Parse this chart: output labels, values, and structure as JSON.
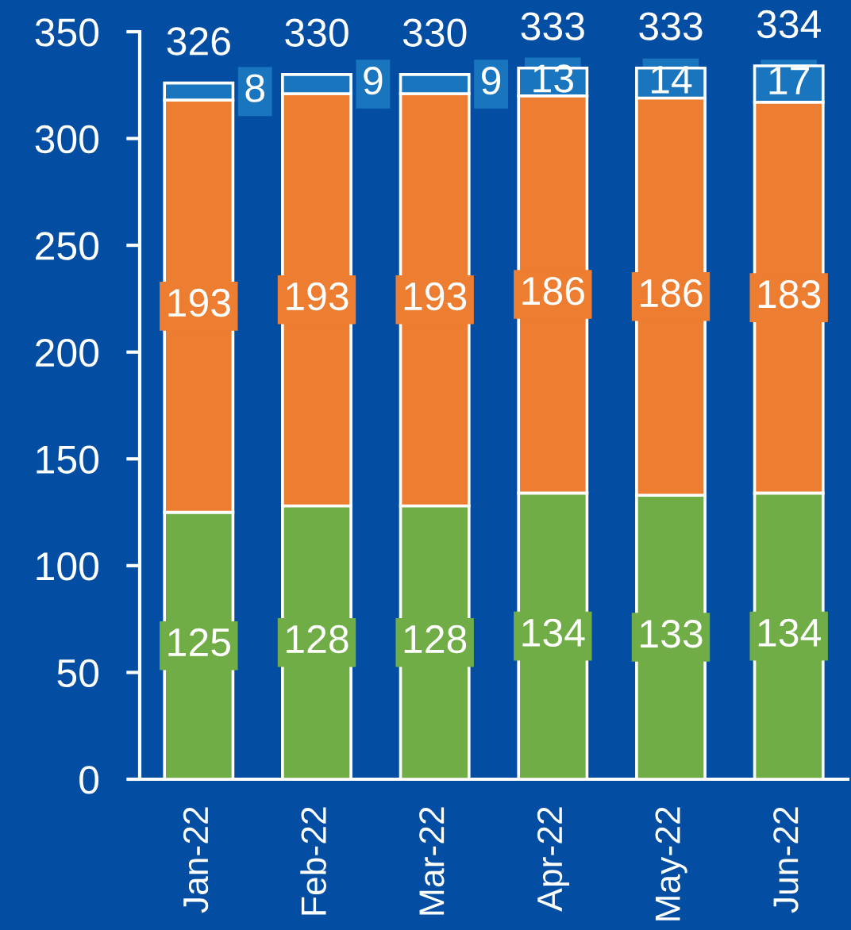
{
  "chart_data": {
    "type": "bar",
    "stacked": true,
    "categories": [
      "Jan-22",
      "Feb-22",
      "Mar-22",
      "Apr-22",
      "May-22",
      "Jun-22"
    ],
    "series": [
      {
        "color": "#70ad47",
        "values": [
          125,
          128,
          128,
          134,
          133,
          134
        ]
      },
      {
        "color": "#ed7d31",
        "values": [
          193,
          193,
          193,
          186,
          186,
          183
        ]
      },
      {
        "color": "#1a75bf",
        "values": [
          8,
          9,
          9,
          13,
          14,
          17
        ]
      }
    ],
    "totals": [
      "326",
      "330",
      "330",
      "333",
      "333",
      "334"
    ],
    "data_labels": true,
    "ylim": [
      0,
      350
    ],
    "yticks": [
      0,
      50,
      100,
      150,
      200,
      250,
      300,
      350
    ],
    "grid": false
  }
}
